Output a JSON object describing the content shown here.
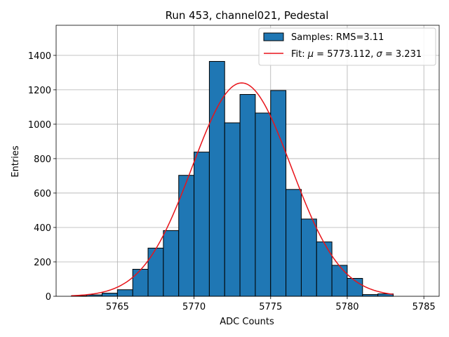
{
  "chart_data": {
    "type": "bar",
    "title": "Run 453, channel021, Pedestal",
    "xlabel": "ADC Counts",
    "ylabel": "Entries",
    "xlim": [
      5761.0,
      5786.0
    ],
    "ylim": [
      0,
      1575
    ],
    "xticks": [
      5765,
      5770,
      5775,
      5780,
      5785
    ],
    "yticks": [
      0,
      200,
      400,
      600,
      800,
      1000,
      1200,
      1400
    ],
    "grid": true,
    "bin_width": 1,
    "bins": [
      {
        "left": 5762,
        "count": 3
      },
      {
        "left": 5763,
        "count": 8
      },
      {
        "left": 5764,
        "count": 18
      },
      {
        "left": 5765,
        "count": 38
      },
      {
        "left": 5766,
        "count": 157
      },
      {
        "left": 5767,
        "count": 280
      },
      {
        "left": 5768,
        "count": 382
      },
      {
        "left": 5769,
        "count": 703
      },
      {
        "left": 5770,
        "count": 838
      },
      {
        "left": 5771,
        "count": 1365
      },
      {
        "left": 5772,
        "count": 1008
      },
      {
        "left": 5773,
        "count": 1173
      },
      {
        "left": 5774,
        "count": 1065
      },
      {
        "left": 5775,
        "count": 1196
      },
      {
        "left": 5776,
        "count": 621
      },
      {
        "left": 5777,
        "count": 449
      },
      {
        "left": 5778,
        "count": 316
      },
      {
        "left": 5779,
        "count": 180
      },
      {
        "left": 5780,
        "count": 104
      },
      {
        "left": 5781,
        "count": 10
      },
      {
        "left": 5782,
        "count": 14
      }
    ],
    "fit": {
      "mu": 5773.112,
      "sigma": 3.231,
      "amplitude": 1240,
      "x_range": [
        5762,
        5783
      ]
    },
    "legend": {
      "position": "top-right",
      "entries": [
        {
          "label": "Samples: RMS=3.11",
          "kind": "patch"
        },
        {
          "label_prefix": "Fit: ",
          "mu_symbol": "μ",
          "mu_text": " = 5773.112, ",
          "sigma_symbol": "σ",
          "sigma_text": " = 3.231",
          "kind": "line"
        }
      ]
    },
    "colors": {
      "bar_fill": "#1f77b4",
      "bar_edge": "#000000",
      "fit_line": "#e8141a",
      "grid": "#b0b0b0"
    }
  }
}
